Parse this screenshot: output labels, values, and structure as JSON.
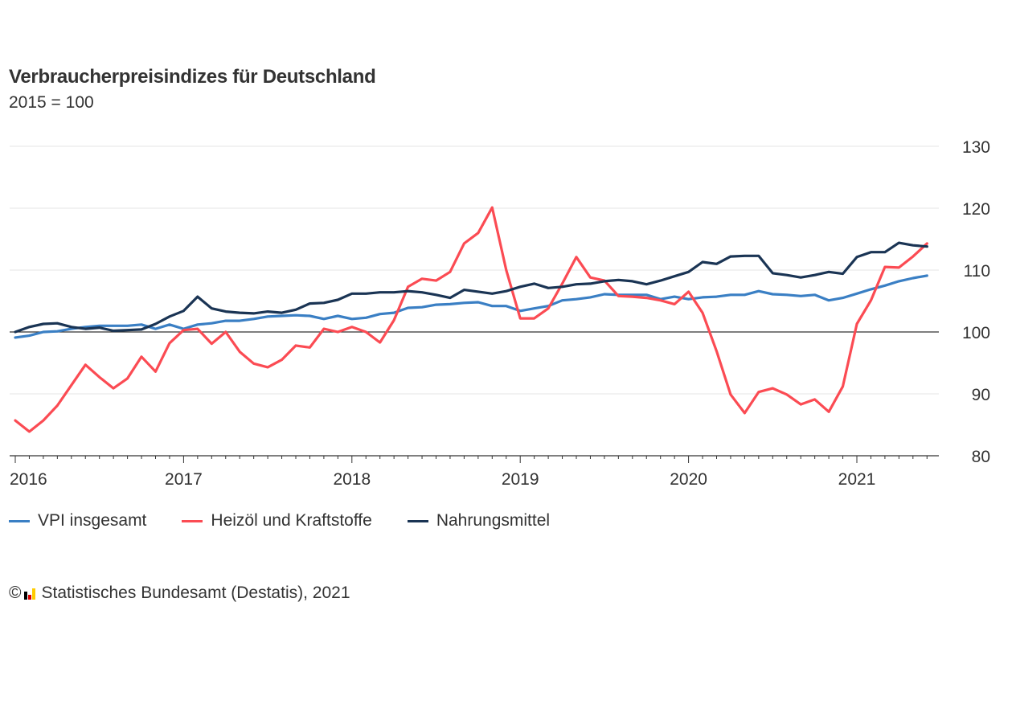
{
  "chart_data": {
    "type": "line",
    "title": "Verbraucherpreisindizes für Deutschland",
    "subtitle": "2015 = 100",
    "x_start": "2016-01",
    "x_end": "2021-06",
    "x_frequency": "monthly",
    "x_tick_labels": [
      "2016",
      "2017",
      "2018",
      "2019",
      "2020",
      "2021"
    ],
    "y_tick_labels": [
      "80",
      "90",
      "100",
      "110",
      "120",
      "130"
    ],
    "ylim": [
      80,
      130
    ],
    "reference_line": 100,
    "grid": true,
    "legend_position": "bottom-left",
    "series": [
      {
        "name": "VPI insgesamt",
        "color": "#3a7fc4",
        "values": [
          99.1,
          99.4,
          100.0,
          100.1,
          100.5,
          100.8,
          101.0,
          101.0,
          101.0,
          101.2,
          100.5,
          101.2,
          100.5,
          101.2,
          101.4,
          101.8,
          101.8,
          102.1,
          102.5,
          102.6,
          102.7,
          102.6,
          102.1,
          102.6,
          102.1,
          102.3,
          102.9,
          103.1,
          103.9,
          104.0,
          104.4,
          104.5,
          104.7,
          104.8,
          104.2,
          104.2,
          103.4,
          103.8,
          104.2,
          105.1,
          105.3,
          105.6,
          106.1,
          106.0,
          106.0,
          106.0,
          105.3,
          105.7,
          105.3,
          105.6,
          105.7,
          106.0,
          106.0,
          106.6,
          106.1,
          106.0,
          105.8,
          106.0,
          105.1,
          105.5,
          106.2,
          106.9,
          107.5,
          108.2,
          108.7,
          109.1
        ]
      },
      {
        "name": "Heizöl und Kraftstoffe",
        "color": "#fb4b53",
        "values": [
          85.7,
          83.9,
          85.7,
          88.1,
          91.4,
          94.7,
          92.7,
          90.9,
          92.5,
          96.0,
          93.6,
          98.2,
          100.3,
          100.5,
          98.1,
          100.0,
          96.8,
          94.9,
          94.3,
          95.5,
          97.8,
          97.5,
          100.5,
          100.0,
          100.8,
          100.0,
          98.3,
          101.9,
          107.3,
          108.6,
          108.3,
          109.7,
          114.3,
          116.0,
          120.1,
          110.0,
          102.2,
          102.2,
          103.8,
          107.8,
          112.1,
          108.8,
          108.3,
          105.8,
          105.7,
          105.5,
          105.1,
          104.5,
          106.5,
          103.1,
          96.9,
          89.9,
          86.9,
          90.3,
          90.9,
          89.9,
          88.3,
          89.1,
          87.1,
          91.2,
          101.3,
          105.1,
          110.5,
          110.4,
          112.2,
          114.3
        ]
      },
      {
        "name": "Nahrungsmittel",
        "color": "#1a3454",
        "values": [
          100.0,
          100.8,
          101.3,
          101.4,
          100.8,
          100.5,
          100.7,
          100.2,
          100.3,
          100.4,
          101.3,
          102.5,
          103.4,
          105.7,
          103.8,
          103.3,
          103.1,
          103.0,
          103.3,
          103.1,
          103.6,
          104.6,
          104.7,
          105.2,
          106.2,
          106.2,
          106.4,
          106.4,
          106.6,
          106.4,
          106.0,
          105.5,
          106.8,
          106.5,
          106.2,
          106.6,
          107.3,
          107.8,
          107.1,
          107.3,
          107.7,
          107.8,
          108.2,
          108.4,
          108.2,
          107.7,
          108.3,
          109.0,
          109.7,
          111.3,
          111.0,
          112.2,
          112.3,
          112.3,
          109.5,
          109.2,
          108.8,
          109.2,
          109.7,
          109.4,
          112.1,
          112.9,
          112.9,
          114.4,
          114.0,
          113.8
        ]
      }
    ]
  },
  "footer": {
    "copyright_symbol": "©",
    "source": "Statistisches Bundesamt (Destatis), 2021",
    "logo_colors": [
      "#000000",
      "#dd0000",
      "#ffcc00"
    ]
  }
}
